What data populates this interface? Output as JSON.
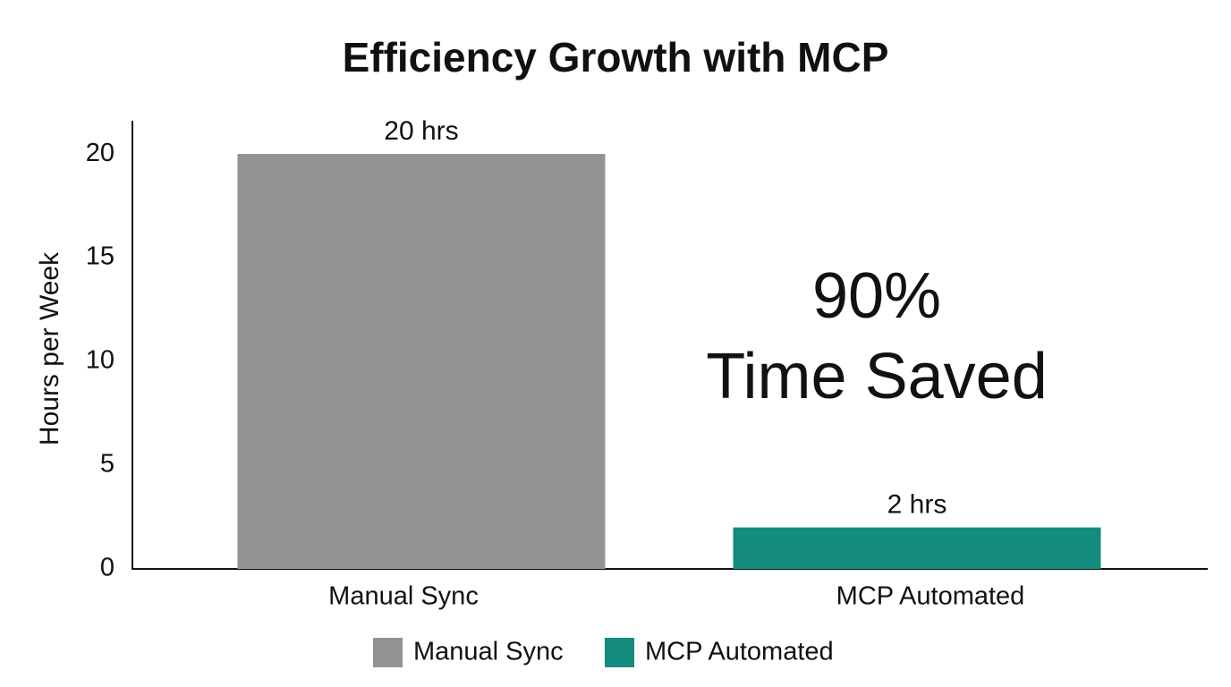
{
  "chart_data": {
    "type": "bar",
    "title": "Efficiency Growth with MCP",
    "y_label": "Hours per Week",
    "categories": [
      "Manual Sync",
      "MCP Automated"
    ],
    "values": [
      20,
      2
    ],
    "value_labels": [
      "20 hrs",
      "2 hrs"
    ],
    "colors": [
      "#939393",
      "#138b7e"
    ],
    "ylim": [
      0,
      21.6
    ],
    "yticks": [
      0,
      5,
      10,
      15,
      20
    ],
    "grid": false,
    "legend": "bottom",
    "annotation": [
      "90%",
      "Time Saved"
    ]
  }
}
